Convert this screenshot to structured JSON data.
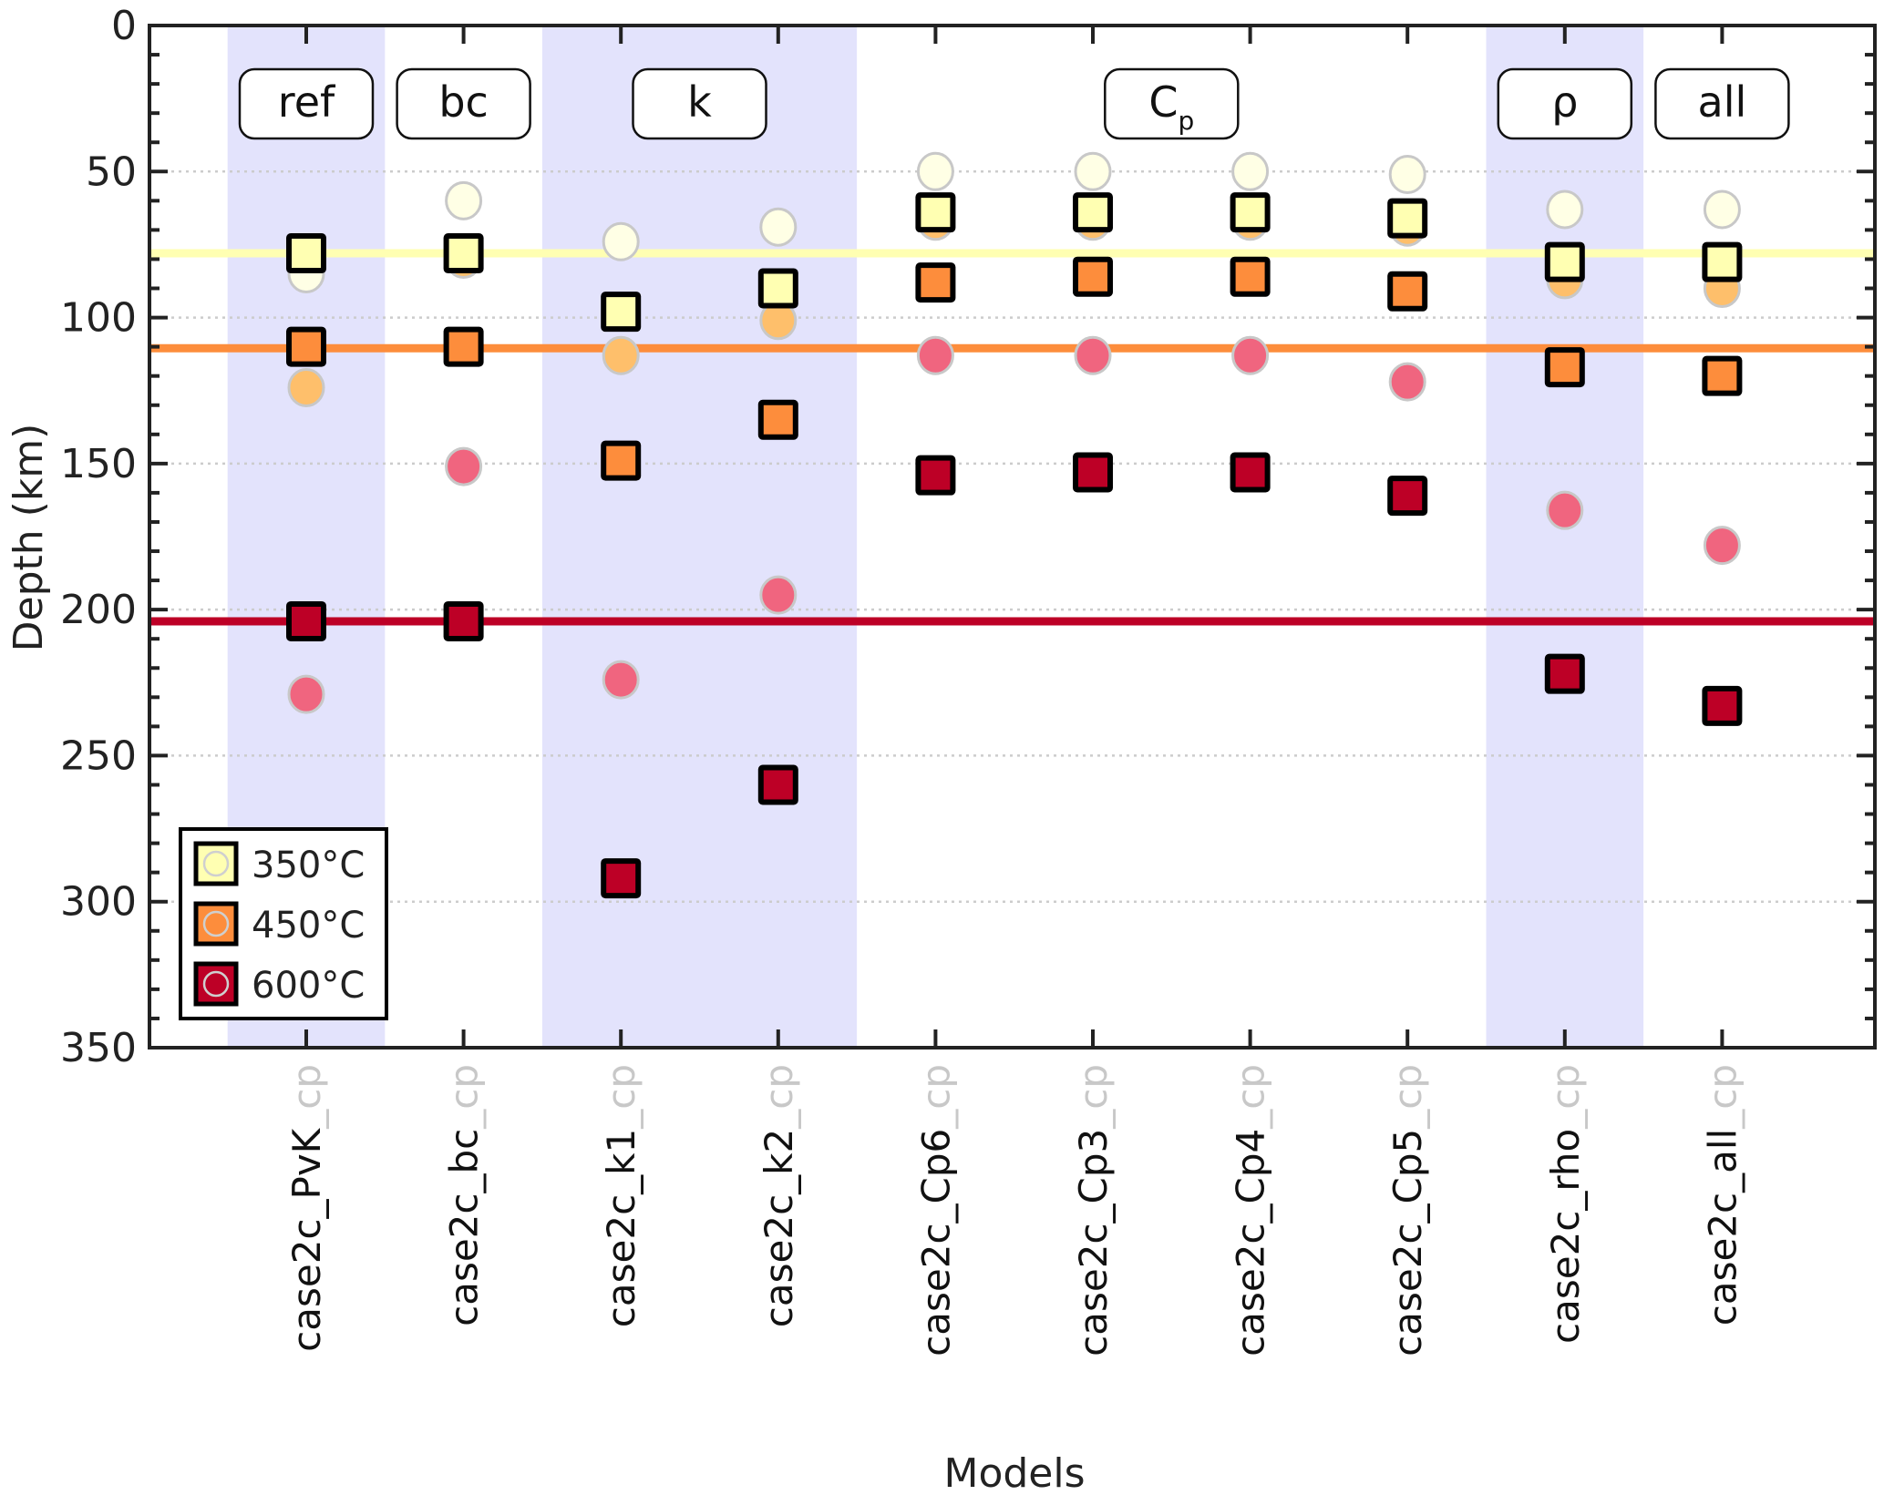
{
  "chart_data": {
    "type": "scatter",
    "title": "",
    "xlabel": "Models",
    "ylabel": "Depth (km)",
    "ylim": [
      0,
      350
    ],
    "y_inverted": true,
    "yticks": [
      0,
      50,
      100,
      150,
      200,
      250,
      300,
      350
    ],
    "y_minor_step": 10,
    "grid": "horizontal dotted at major ticks",
    "categories": [
      {
        "main": "case2c_PvK",
        "suffix": "_cp"
      },
      {
        "main": "case2c_bc",
        "suffix": "_cp"
      },
      {
        "main": "case2c_k1",
        "suffix": "_cp"
      },
      {
        "main": "case2c_k2",
        "suffix": "_cp"
      },
      {
        "main": "case2c_Cp6",
        "suffix": "_cp"
      },
      {
        "main": "case2c_Cp3",
        "suffix": "_cp"
      },
      {
        "main": "case2c_Cp4",
        "suffix": "_cp"
      },
      {
        "main": "case2c_Cp5",
        "suffix": "_cp"
      },
      {
        "main": "case2c_rho",
        "suffix": "_cp"
      },
      {
        "main": "case2c_all",
        "suffix": "_cp"
      }
    ],
    "groups": [
      {
        "label": "ref",
        "sub": "",
        "start": 0,
        "end": 0,
        "shaded": true
      },
      {
        "label": "bc",
        "sub": "",
        "start": 1,
        "end": 1,
        "shaded": false
      },
      {
        "label": "k",
        "sub": "",
        "start": 2,
        "end": 3,
        "shaded": true
      },
      {
        "label": "C",
        "sub": "p",
        "start": 4,
        "end": 7,
        "shaded": false
      },
      {
        "label": "ρ",
        "sub": "",
        "start": 8,
        "end": 8,
        "shaded": true
      },
      {
        "label": "all",
        "sub": "",
        "start": 9,
        "end": 9,
        "shaded": false
      }
    ],
    "reference_lines": [
      {
        "name": "350°C reference",
        "value": 78,
        "color": "#ffffb2"
      },
      {
        "name": "450°C reference",
        "value": 110.5,
        "color": "#fd8d3c"
      },
      {
        "name": "600°C reference",
        "value": 204,
        "color": "#bd0026"
      }
    ],
    "series": [
      {
        "name": "350°C",
        "marker": "square",
        "color": "#ffffb2",
        "values": [
          78,
          78,
          98,
          90,
          64,
          64,
          64,
          66,
          81,
          81
        ]
      },
      {
        "name": "450°C",
        "marker": "square",
        "color": "#fd8d3c",
        "values": [
          110,
          110,
          149,
          135,
          88,
          86,
          86,
          91,
          117,
          120
        ]
      },
      {
        "name": "600°C",
        "marker": "square",
        "color": "#bd0026",
        "values": [
          204,
          204,
          292,
          260,
          154,
          153,
          153,
          161,
          222,
          233
        ]
      },
      {
        "name": "350°C (cp)",
        "marker": "circle",
        "color": "#ffffe5",
        "values": [
          85,
          60,
          74,
          69,
          50,
          50,
          50,
          51,
          63,
          63
        ]
      },
      {
        "name": "450°C (cp)",
        "marker": "circle",
        "color": "#febf6b",
        "values": [
          124,
          80,
          113,
          101,
          67,
          67,
          67,
          69,
          87,
          90
        ]
      },
      {
        "name": "600°C (cp)",
        "marker": "circle",
        "color": "#f0657f",
        "values": [
          229,
          151,
          224,
          195,
          113,
          113,
          113,
          122,
          166,
          178
        ]
      }
    ],
    "legend": {
      "position": "bottom-left",
      "entries": [
        {
          "label": "350°C",
          "color": "#ffffb2"
        },
        {
          "label": "450°C",
          "color": "#fd8d3c"
        },
        {
          "label": "600°C",
          "color": "#bd0026"
        }
      ]
    }
  },
  "colors": {
    "band": "#e3e3fc",
    "axis": "#222222",
    "grid": "#cccccc",
    "circle_edge": "#c8c8c8"
  }
}
